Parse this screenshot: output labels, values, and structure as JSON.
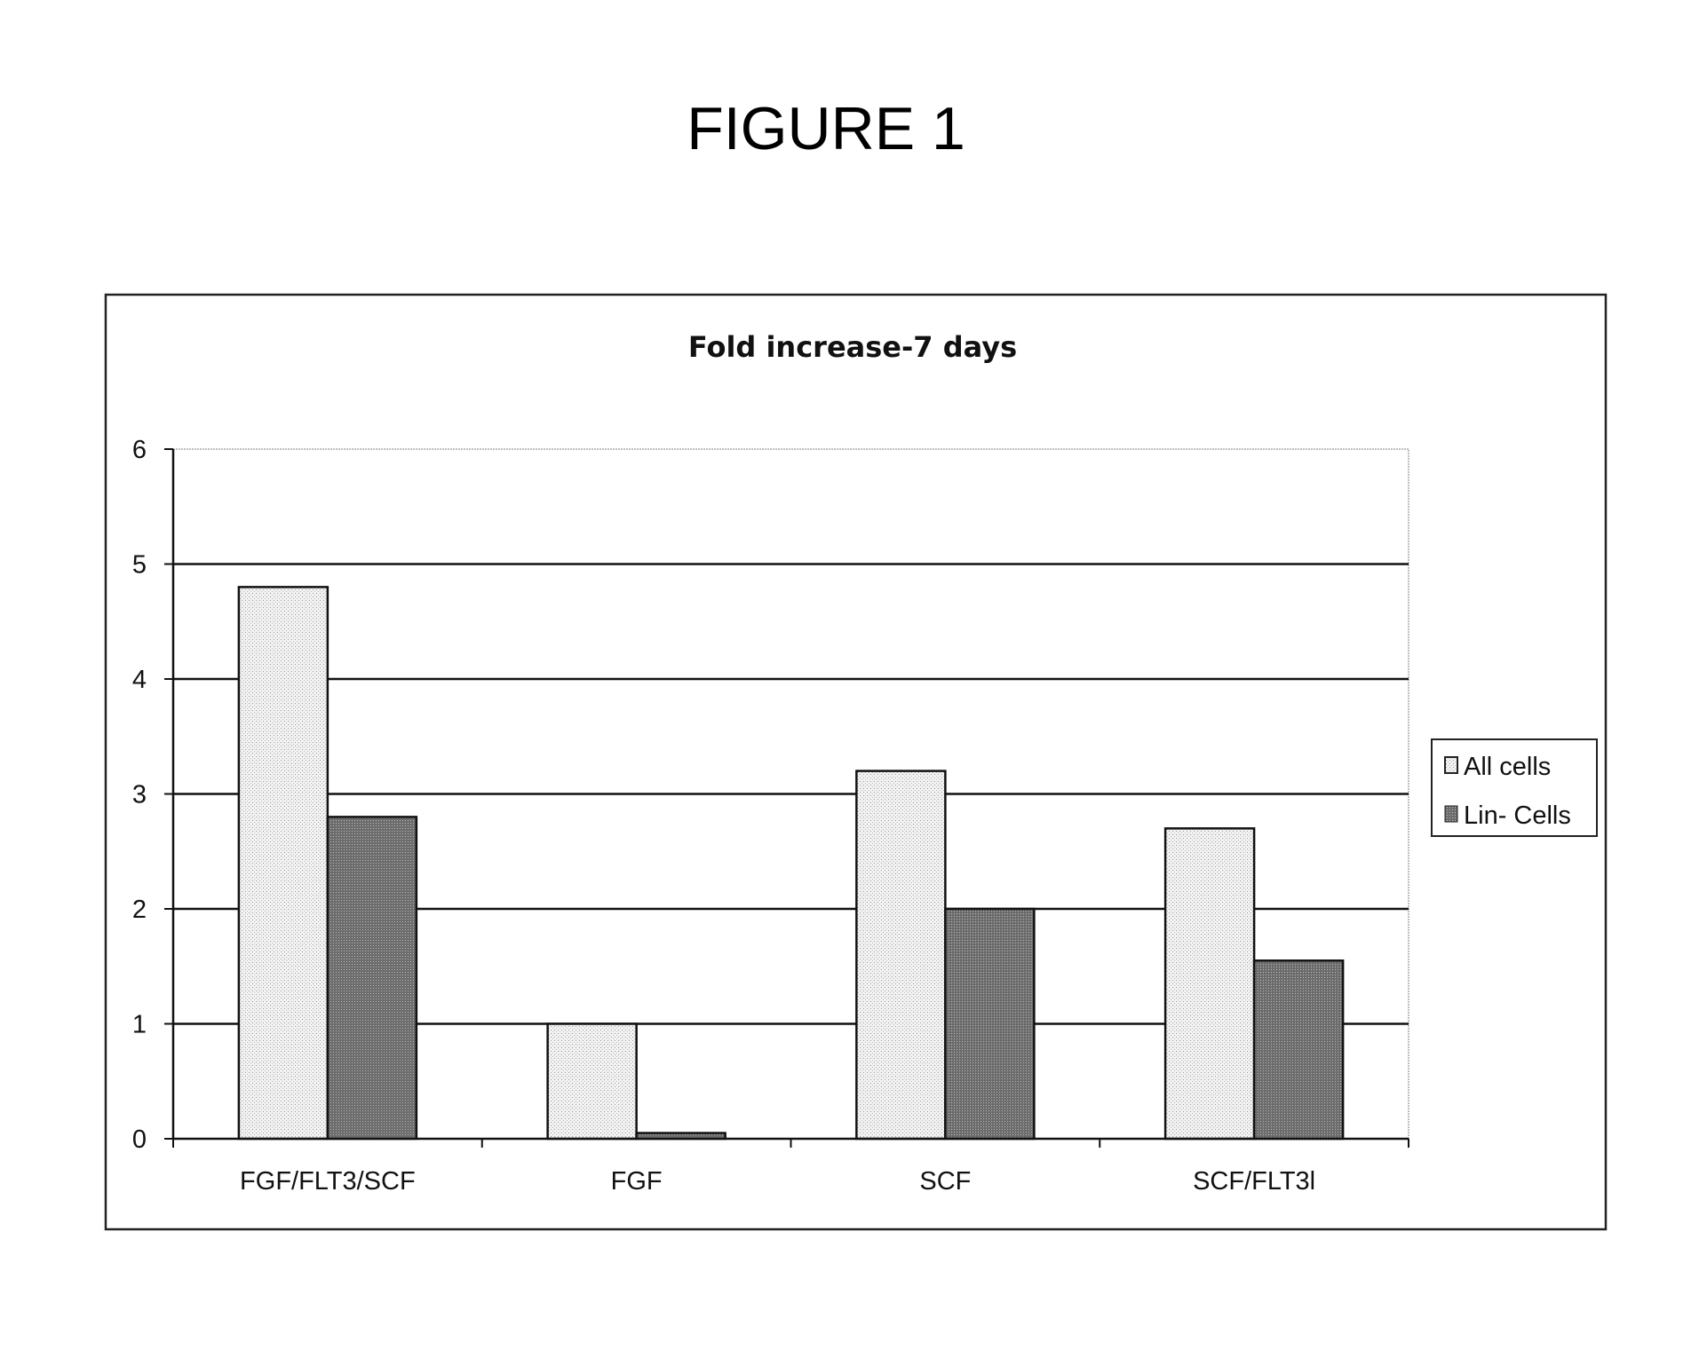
{
  "figure_label": "FIGURE 1",
  "chart_data": {
    "type": "bar",
    "title": "Fold increase-7 days",
    "xlabel": "",
    "ylabel": "",
    "categories": [
      "FGF/FLT3/SCF",
      "FGF",
      "SCF",
      "SCF/FLT3l"
    ],
    "series": [
      {
        "name": "All cells",
        "values": [
          4.8,
          1.0,
          3.2,
          2.7
        ],
        "color": "#e4e4e4"
      },
      {
        "name": "Lin- Cells",
        "values": [
          2.8,
          0.05,
          2.0,
          1.55
        ],
        "color": "#7a7a7a"
      }
    ],
    "ylim": [
      0,
      6
    ],
    "yticks": [
      0,
      1,
      2,
      3,
      4,
      5,
      6
    ],
    "grid": true,
    "legend_position": "right"
  }
}
